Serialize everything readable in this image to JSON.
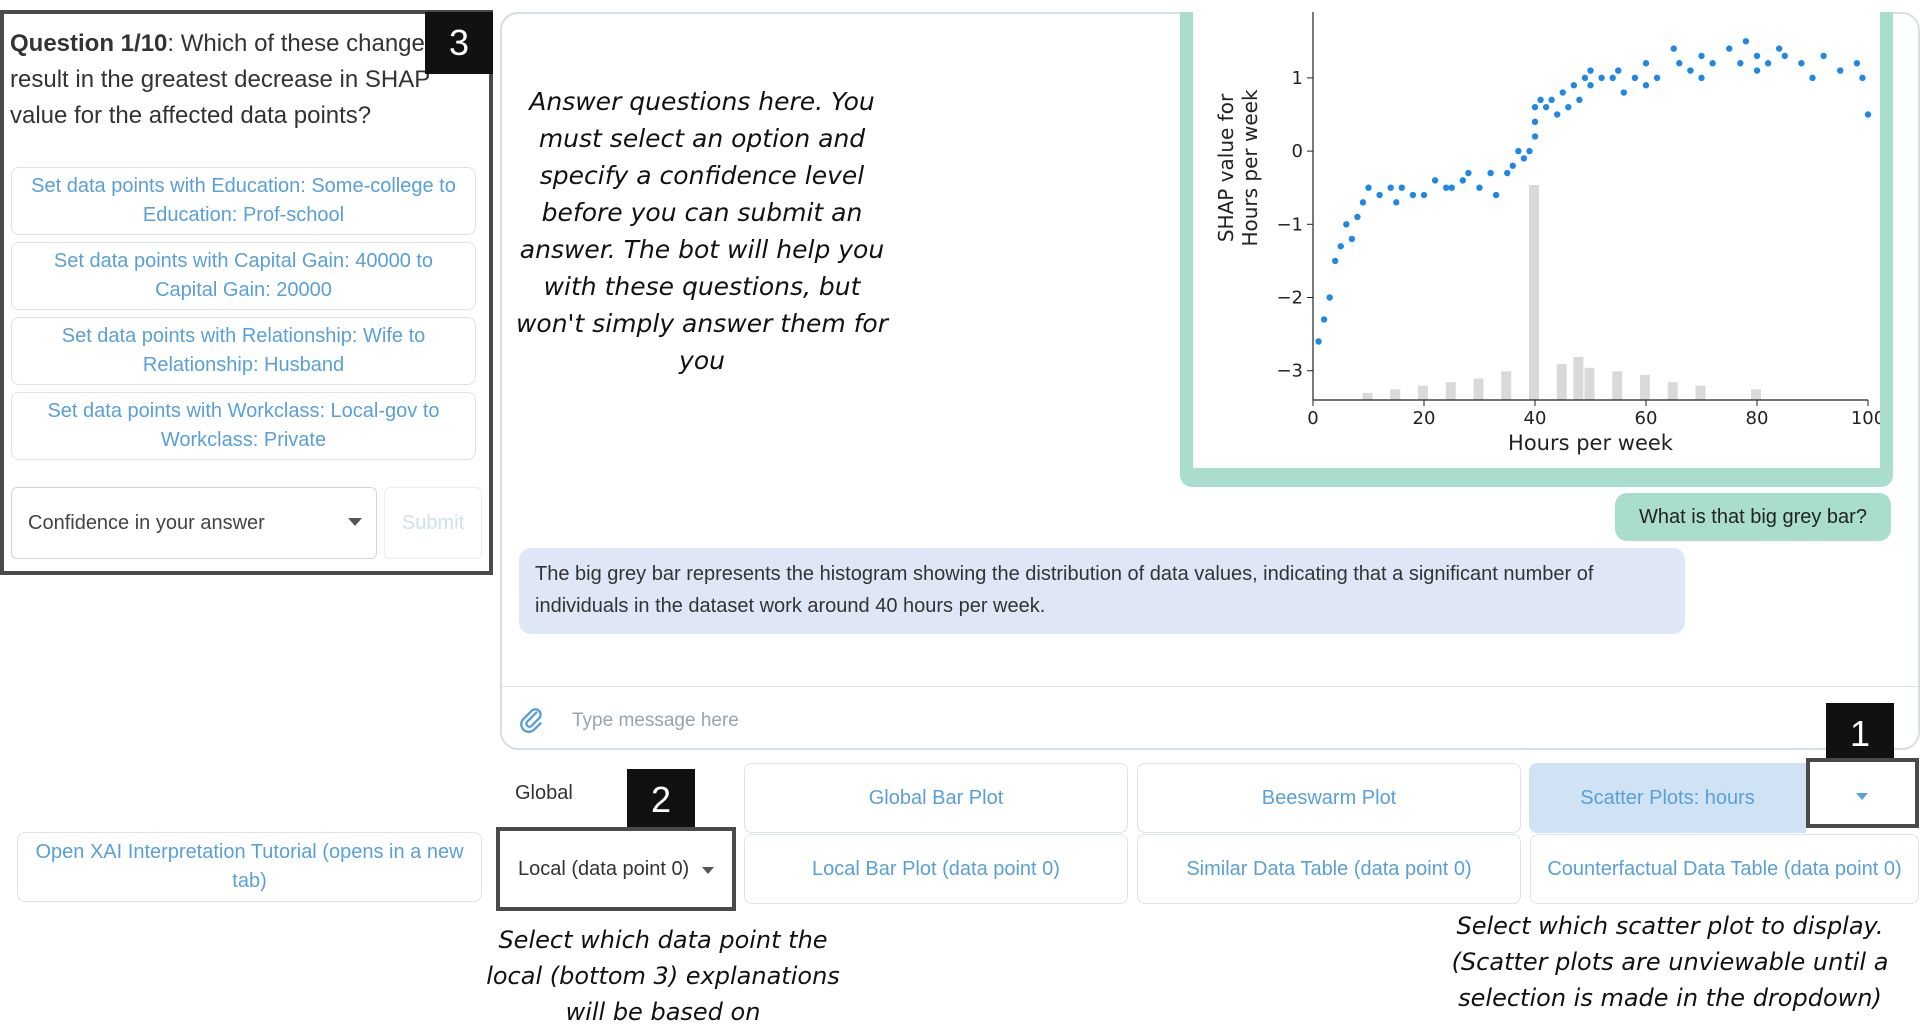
{
  "question": {
    "number_label": "Question 1/10",
    "text": ": Which of these changes will result in the greatest decrease in SHAP value for the affected data points?",
    "options": [
      "Set data points with Education: Some-college to Education: Prof-school",
      "Set data points with Capital Gain: 40000 to Capital Gain: 20000",
      "Set data points with Relationship: Wife to Relationship: Husband",
      "Set data points with Workclass: Local-gov to Workclass: Private"
    ],
    "confidence_placeholder": "Confidence in your answer",
    "submit_label": "Submit"
  },
  "badges": {
    "one": "1",
    "two": "2",
    "three": "3"
  },
  "annotations": {
    "answer_help": "Answer questions here. You must select an option and specify a confidence level before you can submit an answer. The bot will help you with these questions, but won't simply answer them for you",
    "local_help": "Select which data point the local (bottom 3) explanations will be based on",
    "scatter_help": "Select which scatter plot to display. (Scatter plots are unviewable until a selection is made in the dropdown)"
  },
  "chat": {
    "user_message": "What is that big grey bar?",
    "bot_message": "The big grey bar represents the histogram showing the distribution of data values, indicating that a significant number of individuals in the dataset work around 40 hours per week.",
    "input_placeholder": "Type message here"
  },
  "controls": {
    "global_label": "Global",
    "local_select_value": "Local (data point 0)",
    "global_bar_plot": "Global Bar Plot",
    "beeswarm_plot": "Beeswarm Plot",
    "scatter_plots": "Scatter Plots: hours",
    "local_bar_plot": "Local Bar Plot (data point 0)",
    "similar_data_table": "Similar Data Table (data point 0)",
    "counterfactual_table": "Counterfactual Data Table (data point 0)",
    "tutorial_button": "Open XAI Interpretation Tutorial (opens in a new tab)"
  },
  "chart_data": {
    "type": "scatter",
    "xlabel": "Hours per week",
    "ylabel": "SHAP value for Hours per week",
    "xlim": [
      0,
      100
    ],
    "ylim": [
      -3.4,
      1.9
    ],
    "xticks": [
      "0",
      "20",
      "40",
      "60",
      "80",
      "100"
    ],
    "yticks": [
      "−3",
      "−2",
      "−1",
      "0",
      "1"
    ],
    "series": [
      {
        "x": [
          1,
          2,
          3,
          4,
          5,
          6,
          7,
          8,
          9,
          10,
          12,
          14,
          15,
          16,
          18,
          20,
          22,
          24,
          25,
          27,
          28,
          30,
          32,
          33,
          35,
          36,
          37,
          38,
          39,
          40,
          40,
          40,
          41,
          42,
          43,
          44,
          45,
          46,
          47,
          48,
          49,
          50,
          50,
          52,
          54,
          55,
          56,
          58,
          60,
          60,
          62,
          65,
          66,
          68,
          70,
          70,
          72,
          75,
          77,
          78,
          80,
          80,
          82,
          84,
          85,
          88,
          90,
          92,
          95,
          98,
          99,
          100
        ],
        "y": [
          -2.6,
          -2.3,
          -2.0,
          -1.5,
          -1.3,
          -1.0,
          -1.2,
          -0.9,
          -0.7,
          -0.5,
          -0.6,
          -0.5,
          -0.7,
          -0.5,
          -0.6,
          -0.6,
          -0.4,
          -0.5,
          -0.5,
          -0.4,
          -0.3,
          -0.5,
          -0.3,
          -0.6,
          -0.3,
          -0.2,
          0.0,
          -0.1,
          0.0,
          0.2,
          0.4,
          0.6,
          0.7,
          0.6,
          0.7,
          0.5,
          0.8,
          0.6,
          0.9,
          0.7,
          1.0,
          1.1,
          0.9,
          1.0,
          1.0,
          1.1,
          0.8,
          1.0,
          1.2,
          0.9,
          1.0,
          1.4,
          1.2,
          1.1,
          1.3,
          1.0,
          1.2,
          1.4,
          1.2,
          1.5,
          1.3,
          1.1,
          1.2,
          1.4,
          1.3,
          1.2,
          1.0,
          1.3,
          1.1,
          1.2,
          1.0,
          0.5
        ]
      }
    ],
    "histogram": {
      "x": [
        10,
        15,
        20,
        25,
        30,
        35,
        40,
        45,
        48,
        50,
        55,
        60,
        65,
        70,
        80
      ],
      "counts": [
        2,
        3,
        4,
        5,
        6,
        8,
        60,
        10,
        12,
        9,
        8,
        7,
        5,
        4,
        3
      ]
    }
  }
}
